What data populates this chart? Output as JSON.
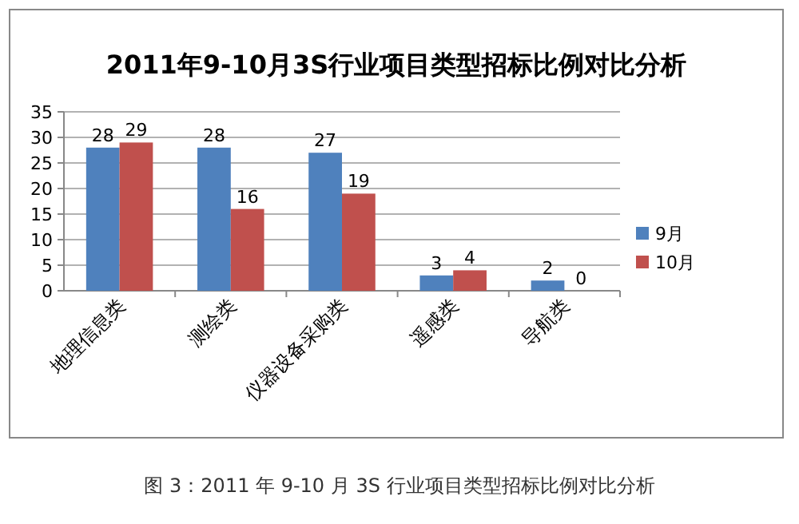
{
  "chart_data": {
    "type": "bar",
    "title": "2011年9-10月3S行业项目类型招标比例对比分析",
    "categories": [
      "地理信息类",
      "测绘类",
      "仪器设备采购类",
      "遥感类",
      "导航类"
    ],
    "series": [
      {
        "name": "9月",
        "color": "#4f81bd",
        "values": [
          28,
          28,
          27,
          3,
          2
        ]
      },
      {
        "name": "10月",
        "color": "#c0504d",
        "values": [
          29,
          16,
          19,
          4,
          0
        ]
      }
    ],
    "ylim": [
      0,
      35
    ],
    "yticks": [
      0,
      5,
      10,
      15,
      20,
      25,
      30,
      35
    ],
    "grid": "y",
    "legend": "right",
    "data_labels": true,
    "annotations": [
      "图 3：2011 年 9-10 月 3S 行业项目类型招标比例对比分析"
    ]
  }
}
